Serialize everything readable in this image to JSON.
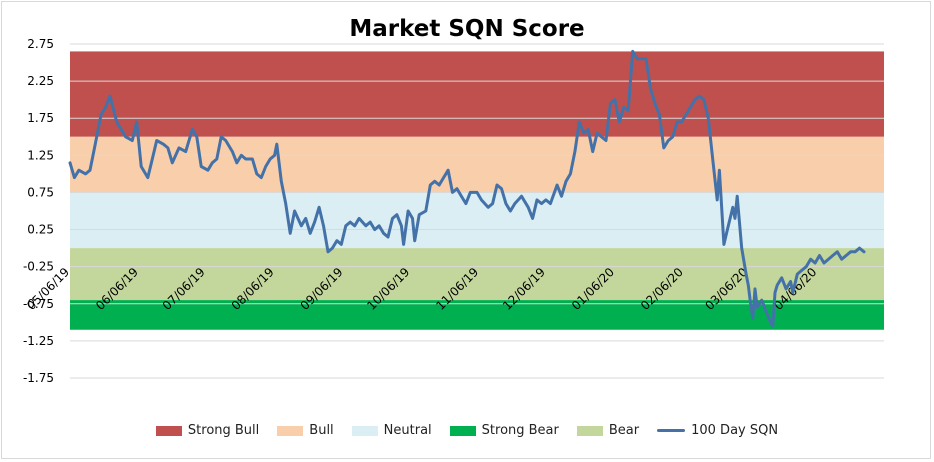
{
  "chart_data": {
    "type": "line",
    "title": "Market SQN Score",
    "xlabel": "",
    "ylabel": "",
    "ylim": [
      -1.75,
      2.75
    ],
    "yticks": [
      2.75,
      2.25,
      1.75,
      1.25,
      0.75,
      0.25,
      -0.25,
      -0.75,
      -1.25,
      -1.75
    ],
    "ytick_labels": [
      "2.75",
      "2.25",
      "1.75",
      "1.25",
      "0.75",
      "0.25",
      "-0.25",
      "-0.75",
      "-1.25",
      "-1.75"
    ],
    "xlim": [
      "2019-05-06",
      "2020-05-06"
    ],
    "xtick_labels": [
      "05/06/19",
      "06/06/19",
      "07/06/19",
      "08/06/19",
      "09/06/19",
      "10/06/19",
      "11/06/19",
      "12/06/19",
      "01/06/20",
      "02/06/20",
      "03/06/20",
      "04/06/20"
    ],
    "xtick_dates": [
      "2019-05-06",
      "2019-06-06",
      "2019-07-06",
      "2019-08-06",
      "2019-09-06",
      "2019-10-06",
      "2019-11-06",
      "2019-12-06",
      "2020-01-06",
      "2020-02-06",
      "2020-03-06",
      "2020-04-06"
    ],
    "grid": true,
    "legend_position": "bottom",
    "bands": [
      {
        "name": "Strong Bull",
        "from": 1.5,
        "to": 2.65,
        "color": "#c0504d"
      },
      {
        "name": "Bull",
        "from": 0.75,
        "to": 1.5,
        "color": "#f9cfab"
      },
      {
        "name": "Neutral",
        "from": 0.0,
        "to": 0.75,
        "color": "#daeef3"
      },
      {
        "name": "Strong Bear",
        "from": -1.1,
        "to": -0.7,
        "color": "#00b050"
      },
      {
        "name": "Bear",
        "from": -0.7,
        "to": 0.0,
        "color": "#c3d69b"
      }
    ],
    "series": [
      {
        "name": "100 Day SQN",
        "color": "#4472a8",
        "points": [
          [
            "2019-05-06",
            1.15
          ],
          [
            "2019-05-08",
            0.95
          ],
          [
            "2019-05-10",
            1.05
          ],
          [
            "2019-05-13",
            1.0
          ],
          [
            "2019-05-15",
            1.05
          ],
          [
            "2019-05-17",
            1.35
          ],
          [
            "2019-05-20",
            1.8
          ],
          [
            "2019-05-22",
            1.9
          ],
          [
            "2019-05-24",
            2.05
          ],
          [
            "2019-05-27",
            1.7
          ],
          [
            "2019-05-29",
            1.6
          ],
          [
            "2019-05-31",
            1.5
          ],
          [
            "2019-06-03",
            1.45
          ],
          [
            "2019-06-05",
            1.7
          ],
          [
            "2019-06-07",
            1.1
          ],
          [
            "2019-06-10",
            0.95
          ],
          [
            "2019-06-12",
            1.2
          ],
          [
            "2019-06-14",
            1.45
          ],
          [
            "2019-06-17",
            1.4
          ],
          [
            "2019-06-19",
            1.35
          ],
          [
            "2019-06-21",
            1.15
          ],
          [
            "2019-06-24",
            1.35
          ],
          [
            "2019-06-27",
            1.3
          ],
          [
            "2019-06-30",
            1.6
          ],
          [
            "2019-07-02",
            1.5
          ],
          [
            "2019-07-04",
            1.1
          ],
          [
            "2019-07-07",
            1.05
          ],
          [
            "2019-07-09",
            1.15
          ],
          [
            "2019-07-11",
            1.2
          ],
          [
            "2019-07-13",
            1.5
          ],
          [
            "2019-07-15",
            1.45
          ],
          [
            "2019-07-18",
            1.3
          ],
          [
            "2019-07-20",
            1.15
          ],
          [
            "2019-07-22",
            1.25
          ],
          [
            "2019-07-24",
            1.2
          ],
          [
            "2019-07-27",
            1.2
          ],
          [
            "2019-07-29",
            1.0
          ],
          [
            "2019-07-31",
            0.95
          ],
          [
            "2019-08-02",
            1.1
          ],
          [
            "2019-08-04",
            1.2
          ],
          [
            "2019-08-06",
            1.25
          ],
          [
            "2019-08-07",
            1.4
          ],
          [
            "2019-08-09",
            0.9
          ],
          [
            "2019-08-11",
            0.6
          ],
          [
            "2019-08-13",
            0.2
          ],
          [
            "2019-08-15",
            0.5
          ],
          [
            "2019-08-18",
            0.3
          ],
          [
            "2019-08-20",
            0.4
          ],
          [
            "2019-08-22",
            0.2
          ],
          [
            "2019-08-24",
            0.35
          ],
          [
            "2019-08-26",
            0.55
          ],
          [
            "2019-08-28",
            0.3
          ],
          [
            "2019-08-30",
            -0.05
          ],
          [
            "2019-09-01",
            0.0
          ],
          [
            "2019-09-03",
            0.1
          ],
          [
            "2019-09-05",
            0.05
          ],
          [
            "2019-09-07",
            0.3
          ],
          [
            "2019-09-09",
            0.35
          ],
          [
            "2019-09-11",
            0.3
          ],
          [
            "2019-09-13",
            0.4
          ],
          [
            "2019-09-16",
            0.3
          ],
          [
            "2019-09-18",
            0.35
          ],
          [
            "2019-09-20",
            0.25
          ],
          [
            "2019-09-22",
            0.3
          ],
          [
            "2019-09-24",
            0.2
          ],
          [
            "2019-09-26",
            0.15
          ],
          [
            "2019-09-28",
            0.4
          ],
          [
            "2019-09-30",
            0.45
          ],
          [
            "2019-10-02",
            0.3
          ],
          [
            "2019-10-03",
            0.05
          ],
          [
            "2019-10-05",
            0.5
          ],
          [
            "2019-10-07",
            0.4
          ],
          [
            "2019-10-08",
            0.1
          ],
          [
            "2019-10-10",
            0.45
          ],
          [
            "2019-10-13",
            0.5
          ],
          [
            "2019-10-15",
            0.85
          ],
          [
            "2019-10-17",
            0.9
          ],
          [
            "2019-10-19",
            0.85
          ],
          [
            "2019-10-21",
            0.95
          ],
          [
            "2019-10-23",
            1.05
          ],
          [
            "2019-10-25",
            0.75
          ],
          [
            "2019-10-27",
            0.8
          ],
          [
            "2019-10-29",
            0.7
          ],
          [
            "2019-10-31",
            0.6
          ],
          [
            "2019-11-02",
            0.75
          ],
          [
            "2019-11-05",
            0.75
          ],
          [
            "2019-11-07",
            0.65
          ],
          [
            "2019-11-10",
            0.55
          ],
          [
            "2019-11-12",
            0.6
          ],
          [
            "2019-11-14",
            0.85
          ],
          [
            "2019-11-16",
            0.8
          ],
          [
            "2019-11-18",
            0.6
          ],
          [
            "2019-11-20",
            0.5
          ],
          [
            "2019-11-22",
            0.6
          ],
          [
            "2019-11-25",
            0.7
          ],
          [
            "2019-11-28",
            0.55
          ],
          [
            "2019-11-30",
            0.4
          ],
          [
            "2019-12-02",
            0.65
          ],
          [
            "2019-12-04",
            0.6
          ],
          [
            "2019-12-06",
            0.65
          ],
          [
            "2019-12-08",
            0.6
          ],
          [
            "2019-12-11",
            0.85
          ],
          [
            "2019-12-13",
            0.7
          ],
          [
            "2019-12-15",
            0.9
          ],
          [
            "2019-12-17",
            1.0
          ],
          [
            "2019-12-19",
            1.3
          ],
          [
            "2019-12-21",
            1.7
          ],
          [
            "2019-12-23",
            1.55
          ],
          [
            "2019-12-25",
            1.6
          ],
          [
            "2019-12-27",
            1.3
          ],
          [
            "2019-12-29",
            1.55
          ],
          [
            "2019-12-31",
            1.5
          ],
          [
            "2020-01-02",
            1.45
          ],
          [
            "2020-01-04",
            1.95
          ],
          [
            "2020-01-06",
            2.0
          ],
          [
            "2020-01-08",
            1.7
          ],
          [
            "2020-01-10",
            1.9
          ],
          [
            "2020-01-12",
            1.85
          ],
          [
            "2020-01-14",
            2.65
          ],
          [
            "2020-01-16",
            2.55
          ],
          [
            "2020-01-18",
            2.55
          ],
          [
            "2020-01-20",
            2.55
          ],
          [
            "2020-01-22",
            2.15
          ],
          [
            "2020-01-24",
            1.95
          ],
          [
            "2020-01-26",
            1.8
          ],
          [
            "2020-01-28",
            1.35
          ],
          [
            "2020-01-30",
            1.45
          ],
          [
            "2020-02-01",
            1.5
          ],
          [
            "2020-02-03",
            1.7
          ],
          [
            "2020-02-05",
            1.7
          ],
          [
            "2020-02-07",
            1.8
          ],
          [
            "2020-02-09",
            1.9
          ],
          [
            "2020-02-11",
            2.0
          ],
          [
            "2020-02-13",
            2.05
          ],
          [
            "2020-02-15",
            2.0
          ],
          [
            "2020-02-17",
            1.75
          ],
          [
            "2020-02-19",
            1.2
          ],
          [
            "2020-02-21",
            0.65
          ],
          [
            "2020-02-22",
            1.05
          ],
          [
            "2020-02-24",
            0.05
          ],
          [
            "2020-02-26",
            0.3
          ],
          [
            "2020-02-28",
            0.55
          ],
          [
            "2020-02-29",
            0.4
          ],
          [
            "2020-03-01",
            0.7
          ],
          [
            "2020-03-03",
            0.0
          ],
          [
            "2020-03-05",
            -0.35
          ],
          [
            "2020-03-06",
            -0.5
          ],
          [
            "2020-03-07",
            -0.75
          ],
          [
            "2020-03-08",
            -0.95
          ],
          [
            "2020-03-09",
            -0.55
          ],
          [
            "2020-03-10",
            -0.8
          ],
          [
            "2020-03-12",
            -0.7
          ],
          [
            "2020-03-14",
            -0.85
          ],
          [
            "2020-03-16",
            -1.0
          ],
          [
            "2020-03-17",
            -1.05
          ],
          [
            "2020-03-18",
            -0.6
          ],
          [
            "2020-03-19",
            -0.5
          ],
          [
            "2020-03-21",
            -0.4
          ],
          [
            "2020-03-23",
            -0.55
          ],
          [
            "2020-03-25",
            -0.45
          ],
          [
            "2020-03-26",
            -0.6
          ],
          [
            "2020-03-28",
            -0.35
          ],
          [
            "2020-03-30",
            -0.3
          ],
          [
            "2020-04-01",
            -0.25
          ],
          [
            "2020-04-03",
            -0.15
          ],
          [
            "2020-04-05",
            -0.2
          ],
          [
            "2020-04-07",
            -0.1
          ],
          [
            "2020-04-09",
            -0.2
          ],
          [
            "2020-04-11",
            -0.15
          ],
          [
            "2020-04-13",
            -0.1
          ],
          [
            "2020-04-15",
            -0.05
          ],
          [
            "2020-04-17",
            -0.15
          ],
          [
            "2020-04-19",
            -0.1
          ],
          [
            "2020-04-21",
            -0.05
          ],
          [
            "2020-04-23",
            -0.05
          ],
          [
            "2020-04-25",
            0.0
          ],
          [
            "2020-04-27",
            -0.05
          ]
        ]
      }
    ]
  }
}
